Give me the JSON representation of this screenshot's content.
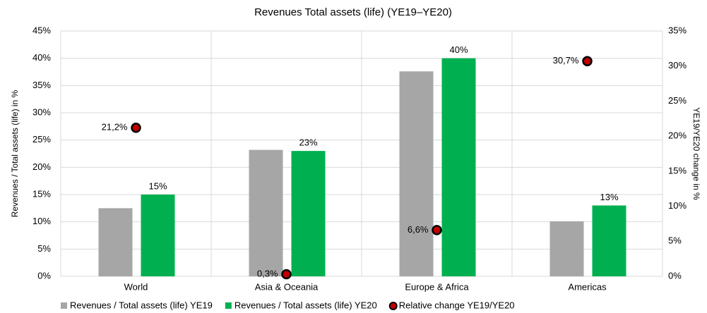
{
  "chart_data": {
    "type": "bar",
    "title": "Revenues Total assets (life) (YE19–YE20)",
    "y_label": "Revenues / Total assets (life) in %",
    "y2_label": "YE19/YE20 change in %",
    "categories": [
      "World",
      "Asia & Oceania",
      "Europe & Africa",
      "Americas"
    ],
    "series": [
      {
        "name": "Revenues / Total assets (life) YE19",
        "color": "#a6a6a6",
        "values": [
          12.5,
          23.2,
          37.6,
          10.1
        ]
      },
      {
        "name": "Revenues / Total assets (life) YE20",
        "color": "#00b050",
        "values": [
          15,
          23,
          40,
          13
        ],
        "value_labels": [
          "15%",
          "23%",
          "40%",
          "13%"
        ]
      },
      {
        "name": "Relative change YE19/YE20",
        "color": "#c00000",
        "axis": "y2",
        "values": [
          21.2,
          0.3,
          6.6,
          30.7
        ],
        "value_labels": [
          "21,2%",
          "0,3%",
          "6,6%",
          "30,7%"
        ]
      }
    ],
    "ylim": [
      0,
      45
    ],
    "yticks": [
      {
        "value": 0,
        "label": "0%"
      },
      {
        "value": 5,
        "label": "5%"
      },
      {
        "value": 10,
        "label": "10%"
      },
      {
        "value": 15,
        "label": "15%"
      },
      {
        "value": 20,
        "label": "20%"
      },
      {
        "value": 25,
        "label": "25%"
      },
      {
        "value": 30,
        "label": "30%"
      },
      {
        "value": 35,
        "label": "35%"
      },
      {
        "value": 40,
        "label": "40%"
      },
      {
        "value": 45,
        "label": "45%"
      }
    ],
    "y2lim": [
      0,
      35
    ],
    "y2ticks": [
      {
        "value": 0,
        "label": "0%"
      },
      {
        "value": 5,
        "label": "5%"
      },
      {
        "value": 10,
        "label": "10%"
      },
      {
        "value": 15,
        "label": "15%"
      },
      {
        "value": 20,
        "label": "20%"
      },
      {
        "value": 25,
        "label": "25%"
      },
      {
        "value": 30,
        "label": "30%"
      },
      {
        "value": 35,
        "label": "35%"
      }
    ],
    "grid": true,
    "legend": "bottom"
  }
}
